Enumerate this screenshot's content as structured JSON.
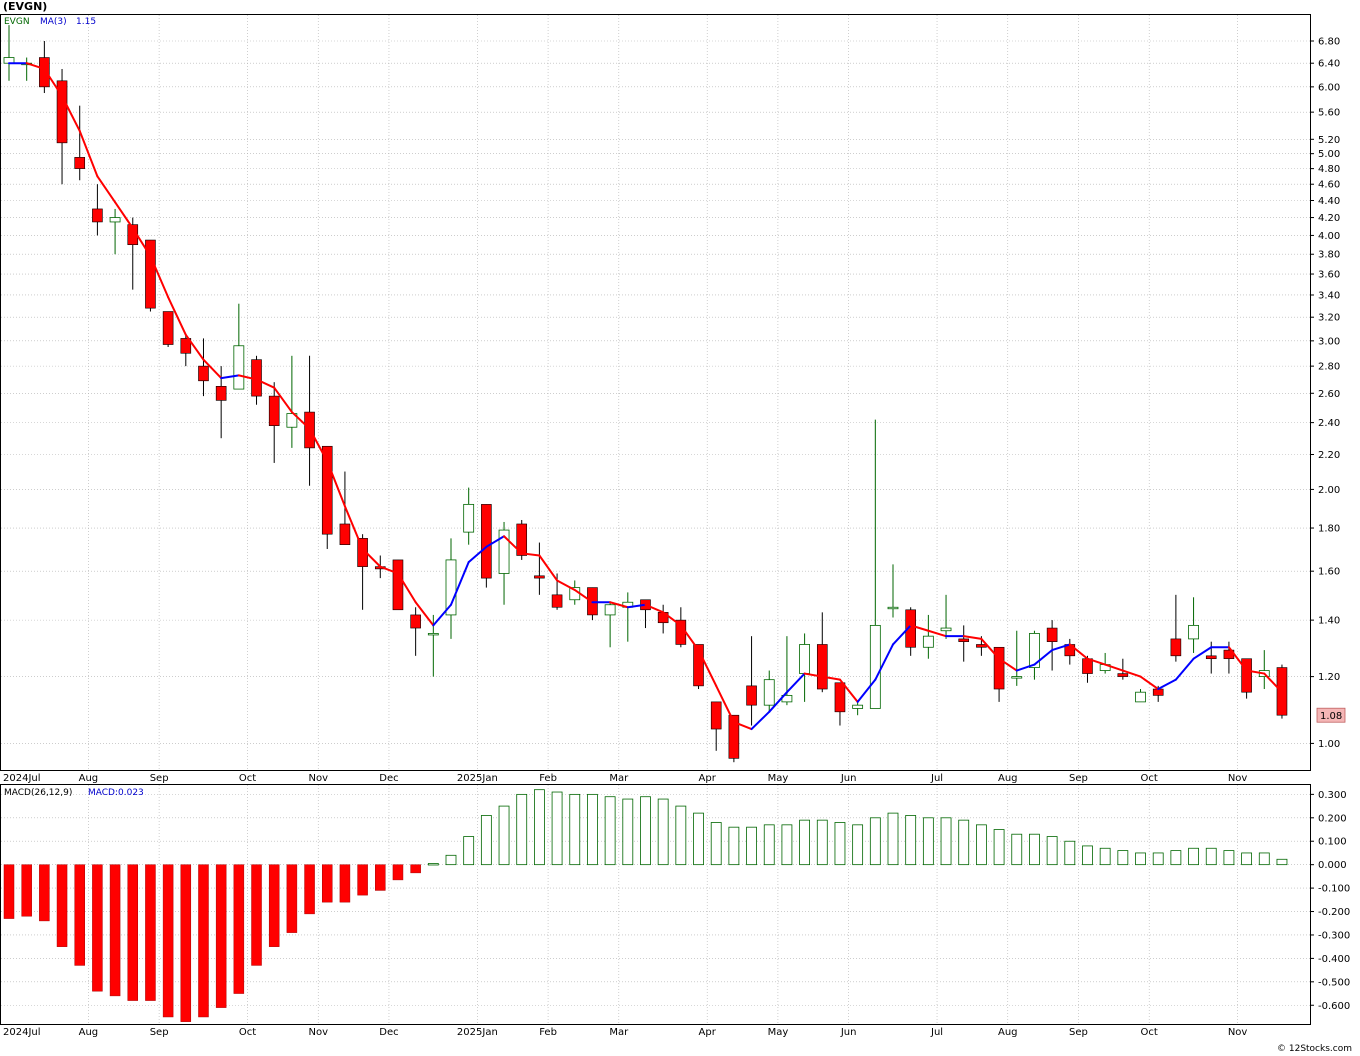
{
  "header": {
    "title": "(EVGN)",
    "legend_symbol": "EVGN",
    "legend_ma": "MA(3)",
    "legend_ma_value": "1.15",
    "legend_macd": "MACD(26,12,9)",
    "legend_macd_value": "MACD:0.023",
    "last_price_label": "1.08",
    "credit": "© 12Stocks.com"
  },
  "colors": {
    "up_candle": "#006600",
    "down_candle": "#ff0000",
    "ma_up": "#0000ff",
    "ma_down": "#ff0000",
    "grid": "#b0b0b0",
    "price_badge": "#f4b6b6"
  },
  "chart_data": [
    {
      "type": "candlestick",
      "title": "(EVGN)",
      "scale": "log",
      "ylim": [
        0.93,
        7.3
      ],
      "yticks": [
        "1.00",
        "1.20",
        "1.40",
        "1.60",
        "1.80",
        "2.00",
        "2.20",
        "2.40",
        "2.60",
        "2.80",
        "3.00",
        "3.20",
        "3.40",
        "3.60",
        "3.80",
        "4.00",
        "4.20",
        "4.40",
        "4.60",
        "4.80",
        "5.00",
        "5.20",
        "5.60",
        "6.00",
        "6.40",
        "6.80"
      ],
      "month_labels": [
        {
          "label": "2024Jul",
          "week": 0
        },
        {
          "label": "Aug",
          "week": 5
        },
        {
          "label": "Sep",
          "week": 9
        },
        {
          "label": "Oct",
          "week": 14
        },
        {
          "label": "Nov",
          "week": 18
        },
        {
          "label": "Dec",
          "week": 22
        },
        {
          "label": "2025Jan",
          "week": 27
        },
        {
          "label": "Feb",
          "week": 31
        },
        {
          "label": "Mar",
          "week": 35
        },
        {
          "label": "Apr",
          "week": 40
        },
        {
          "label": "May",
          "week": 44
        },
        {
          "label": "Jun",
          "week": 48
        },
        {
          "label": "Jul",
          "week": 53
        },
        {
          "label": "Aug",
          "week": 57
        },
        {
          "label": "Sep",
          "week": 61
        },
        {
          "label": "Oct",
          "week": 65
        },
        {
          "label": "Nov",
          "week": 70
        }
      ],
      "ohlc": [
        [
          6.4,
          7.1,
          6.1,
          6.5
        ],
        [
          6.4,
          6.5,
          6.1,
          6.4
        ],
        [
          6.5,
          6.8,
          5.9,
          6.0
        ],
        [
          6.1,
          6.3,
          4.6,
          5.15
        ],
        [
          4.95,
          5.7,
          4.65,
          4.8
        ],
        [
          4.3,
          4.6,
          4.0,
          4.15
        ],
        [
          4.15,
          4.3,
          3.8,
          4.2
        ],
        [
          4.12,
          4.2,
          3.45,
          3.9
        ],
        [
          3.95,
          3.95,
          3.25,
          3.28
        ],
        [
          3.25,
          3.25,
          2.95,
          2.97
        ],
        [
          3.02,
          3.05,
          2.8,
          2.9
        ],
        [
          2.8,
          3.02,
          2.58,
          2.69
        ],
        [
          2.65,
          2.8,
          2.3,
          2.55
        ],
        [
          2.63,
          3.32,
          2.63,
          2.96
        ],
        [
          2.85,
          2.88,
          2.52,
          2.58
        ],
        [
          2.58,
          2.68,
          2.15,
          2.38
        ],
        [
          2.37,
          2.88,
          2.24,
          2.46
        ],
        [
          2.47,
          2.88,
          2.02,
          2.24
        ],
        [
          2.25,
          2.25,
          1.7,
          1.77
        ],
        [
          1.82,
          2.1,
          1.72,
          1.72
        ],
        [
          1.75,
          1.77,
          1.44,
          1.62
        ],
        [
          1.62,
          1.67,
          1.57,
          1.61
        ],
        [
          1.65,
          1.65,
          1.44,
          1.44
        ],
        [
          1.42,
          1.45,
          1.27,
          1.37
        ],
        [
          1.35,
          1.42,
          1.2,
          1.35
        ],
        [
          1.42,
          1.75,
          1.33,
          1.65
        ],
        [
          1.78,
          2.01,
          1.72,
          1.92
        ],
        [
          1.92,
          1.92,
          1.53,
          1.57
        ],
        [
          1.59,
          1.83,
          1.46,
          1.79
        ],
        [
          1.82,
          1.84,
          1.65,
          1.67
        ],
        [
          1.58,
          1.73,
          1.5,
          1.57
        ],
        [
          1.5,
          1.59,
          1.44,
          1.45
        ],
        [
          1.48,
          1.56,
          1.46,
          1.53
        ],
        [
          1.53,
          1.53,
          1.4,
          1.42
        ],
        [
          1.42,
          1.47,
          1.3,
          1.46
        ],
        [
          1.45,
          1.51,
          1.32,
          1.47
        ],
        [
          1.48,
          1.48,
          1.37,
          1.44
        ],
        [
          1.43,
          1.46,
          1.35,
          1.39
        ],
        [
          1.4,
          1.45,
          1.3,
          1.31
        ],
        [
          1.31,
          1.31,
          1.16,
          1.17
        ],
        [
          1.12,
          1.12,
          0.98,
          1.04
        ],
        [
          1.08,
          1.08,
          0.95,
          0.96
        ],
        [
          1.17,
          1.34,
          1.05,
          1.11
        ],
        [
          1.11,
          1.22,
          1.09,
          1.19
        ],
        [
          1.12,
          1.34,
          1.11,
          1.14
        ],
        [
          1.21,
          1.35,
          1.12,
          1.31
        ],
        [
          1.31,
          1.43,
          1.15,
          1.16
        ],
        [
          1.18,
          1.18,
          1.05,
          1.09
        ],
        [
          1.1,
          1.12,
          1.08,
          1.11
        ],
        [
          1.1,
          2.42,
          1.1,
          1.38
        ],
        [
          1.45,
          1.63,
          1.41,
          1.45
        ],
        [
          1.44,
          1.45,
          1.27,
          1.3
        ],
        [
          1.3,
          1.42,
          1.26,
          1.34
        ],
        [
          1.36,
          1.5,
          1.33,
          1.37
        ],
        [
          1.33,
          1.38,
          1.25,
          1.32
        ],
        [
          1.31,
          1.34,
          1.27,
          1.3
        ],
        [
          1.3,
          1.3,
          1.12,
          1.16
        ],
        [
          1.2,
          1.36,
          1.17,
          1.2
        ],
        [
          1.23,
          1.36,
          1.19,
          1.35
        ],
        [
          1.37,
          1.4,
          1.22,
          1.32
        ],
        [
          1.31,
          1.33,
          1.24,
          1.27
        ],
        [
          1.26,
          1.27,
          1.18,
          1.21
        ],
        [
          1.22,
          1.28,
          1.21,
          1.24
        ],
        [
          1.21,
          1.26,
          1.19,
          1.2
        ],
        [
          1.12,
          1.16,
          1.12,
          1.15
        ],
        [
          1.16,
          1.17,
          1.12,
          1.14
        ],
        [
          1.33,
          1.5,
          1.25,
          1.27
        ],
        [
          1.33,
          1.49,
          1.28,
          1.38
        ],
        [
          1.27,
          1.32,
          1.21,
          1.26
        ],
        [
          1.29,
          1.32,
          1.21,
          1.26
        ],
        [
          1.26,
          1.26,
          1.13,
          1.15
        ],
        [
          1.2,
          1.29,
          1.16,
          1.22
        ],
        [
          1.23,
          1.24,
          1.07,
          1.08
        ]
      ],
      "ma3": [
        6.4,
        6.4,
        6.3,
        5.85,
        5.32,
        4.7,
        4.38,
        4.08,
        3.78,
        3.38,
        3.05,
        2.85,
        2.71,
        2.73,
        2.7,
        2.64,
        2.47,
        2.36,
        2.16,
        1.91,
        1.7,
        1.62,
        1.59,
        1.47,
        1.38,
        1.46,
        1.64,
        1.71,
        1.76,
        1.68,
        1.67,
        1.56,
        1.52,
        1.47,
        1.47,
        1.45,
        1.46,
        1.43,
        1.38,
        1.29,
        1.17,
        1.06,
        1.04,
        1.09,
        1.15,
        1.21,
        1.2,
        1.19,
        1.12,
        1.19,
        1.31,
        1.38,
        1.36,
        1.34,
        1.34,
        1.33,
        1.26,
        1.22,
        1.24,
        1.29,
        1.31,
        1.26,
        1.24,
        1.22,
        1.2,
        1.16,
        1.19,
        1.26,
        1.3,
        1.3,
        1.22,
        1.21,
        1.15
      ]
    },
    {
      "type": "bar",
      "title": "MACD(26,12,9)",
      "ylim": [
        -0.68,
        0.34
      ],
      "yticks": [
        "-0.600",
        "-0.500",
        "-0.400",
        "-0.300",
        "-0.200",
        "-0.100",
        "0.000",
        "0.100",
        "0.200",
        "0.300"
      ],
      "values": [
        -0.23,
        -0.22,
        -0.24,
        -0.35,
        -0.43,
        -0.54,
        -0.56,
        -0.58,
        -0.58,
        -0.65,
        -0.67,
        -0.65,
        -0.61,
        -0.55,
        -0.43,
        -0.35,
        -0.29,
        -0.21,
        -0.16,
        -0.16,
        -0.13,
        -0.11,
        -0.065,
        -0.035,
        0.005,
        0.04,
        0.12,
        0.21,
        0.25,
        0.3,
        0.32,
        0.31,
        0.3,
        0.3,
        0.29,
        0.28,
        0.29,
        0.28,
        0.25,
        0.22,
        0.18,
        0.16,
        0.16,
        0.17,
        0.17,
        0.19,
        0.19,
        0.18,
        0.17,
        0.2,
        0.22,
        0.21,
        0.2,
        0.2,
        0.19,
        0.17,
        0.15,
        0.13,
        0.13,
        0.12,
        0.1,
        0.08,
        0.07,
        0.06,
        0.05,
        0.05,
        0.06,
        0.07,
        0.07,
        0.06,
        0.05,
        0.05,
        0.023
      ]
    }
  ]
}
